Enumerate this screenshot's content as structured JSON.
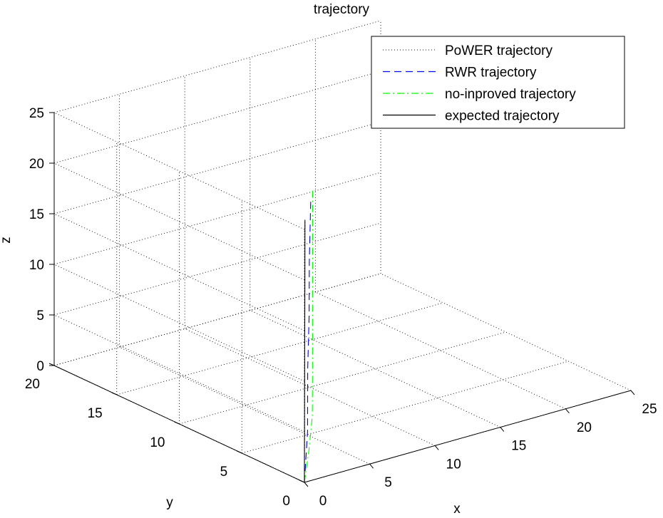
{
  "chart_data": {
    "type": "line",
    "projection": "3d",
    "title": "trajectory",
    "xlabel": "x",
    "ylabel": "y",
    "zlabel": "z",
    "xlim": [
      0,
      25
    ],
    "ylim": [
      0,
      20
    ],
    "zlim": [
      0,
      25
    ],
    "xticks": [
      0,
      5,
      10,
      15,
      20,
      25
    ],
    "yticks": [
      0,
      5,
      10,
      15,
      20
    ],
    "zticks": [
      0,
      5,
      10,
      15,
      20,
      25
    ],
    "grid": true,
    "legend_position": "top-right",
    "series": [
      {
        "name": "PoWER trajectory",
        "style": "dotted",
        "color": "#ff0000",
        "points": [
          [
            0,
            0,
            0
          ],
          [
            0.1,
            0.1,
            2
          ],
          [
            0.3,
            0.3,
            5
          ],
          [
            0.5,
            0.5,
            10
          ],
          [
            0.7,
            0.7,
            15
          ],
          [
            0.9,
            0.9,
            20
          ],
          [
            1,
            1,
            25
          ]
        ]
      },
      {
        "name": "RWR trajectory",
        "style": "dashed",
        "color": "#0000ff",
        "points": [
          [
            0,
            0,
            0
          ],
          [
            0.6,
            0.5,
            2
          ],
          [
            1.2,
            1.0,
            4
          ],
          [
            1.3,
            1.1,
            7
          ],
          [
            1.4,
            1.2,
            10
          ],
          [
            1.8,
            1.5,
            15
          ],
          [
            2.1,
            1.8,
            20
          ],
          [
            2.5,
            2.1,
            26
          ]
        ]
      },
      {
        "name": "no-inproved trajectory",
        "style": "dashdot",
        "color": "#00ff00",
        "points": [
          [
            0,
            0,
            0
          ],
          [
            1.5,
            1.2,
            2
          ],
          [
            3.0,
            2.5,
            4
          ],
          [
            3.3,
            2.8,
            7
          ],
          [
            3.4,
            2.9,
            10
          ],
          [
            3.4,
            2.9,
            15
          ],
          [
            3.5,
            3.0,
            20
          ],
          [
            3.5,
            3.0,
            26
          ]
        ]
      },
      {
        "name": "expected trajectory",
        "style": "solid",
        "color": "#000000",
        "points": [
          [
            0,
            0,
            0
          ],
          [
            1,
            1,
            25
          ]
        ]
      }
    ]
  }
}
